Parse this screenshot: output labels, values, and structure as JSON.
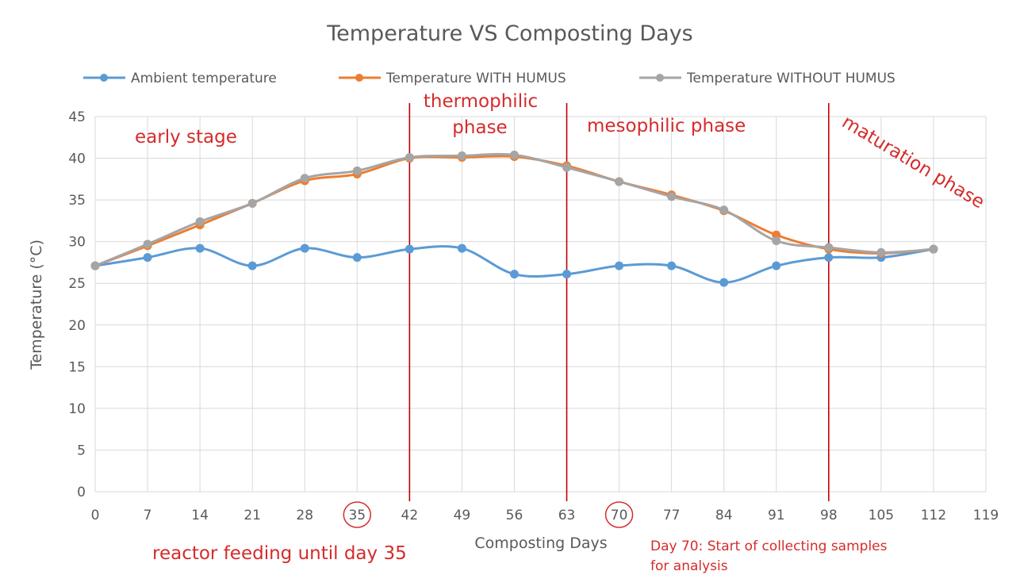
{
  "chart_data": {
    "type": "line",
    "title": "Temperature VS Composting Days",
    "xlabel": "Composting Days",
    "ylabel": "Temperature (°C)",
    "xlim": [
      0,
      119
    ],
    "ylim": [
      0,
      45
    ],
    "x_ticks": [
      0,
      7,
      14,
      21,
      28,
      35,
      42,
      49,
      56,
      63,
      70,
      77,
      84,
      91,
      98,
      105,
      112,
      119
    ],
    "y_ticks": [
      0,
      5,
      10,
      15,
      20,
      25,
      30,
      35,
      40,
      45
    ],
    "grid": true,
    "legend_position": "top",
    "x": [
      0,
      7,
      14,
      21,
      28,
      35,
      42,
      49,
      56,
      63,
      70,
      77,
      84,
      91,
      98,
      105,
      112
    ],
    "series": [
      {
        "name": "Ambient temperature",
        "color": "#5b9bd5",
        "values": [
          27.1,
          28.1,
          29.2,
          27.1,
          29.2,
          28.1,
          29.1,
          29.2,
          26.1,
          26.1,
          27.1,
          27.1,
          25.1,
          27.1,
          28.1,
          28.1,
          29.1
        ]
      },
      {
        "name": "Temperature WITH HUMUS",
        "color": "#ed7d31",
        "values": [
          27.1,
          29.5,
          32.0,
          34.6,
          37.3,
          38.1,
          40.0,
          40.1,
          40.2,
          39.1,
          37.2,
          35.6,
          33.7,
          30.8,
          29.1,
          28.6,
          29.1
        ]
      },
      {
        "name": "Temperature WITHOUT HUMUS",
        "color": "#a5a5a5",
        "values": [
          27.1,
          29.7,
          32.4,
          34.6,
          37.6,
          38.5,
          40.1,
          40.3,
          40.4,
          38.9,
          37.2,
          35.4,
          33.8,
          30.1,
          29.3,
          28.7,
          29.1
        ]
      }
    ],
    "phase_lines": [
      {
        "x": 42,
        "color": "#c00000"
      },
      {
        "x": 63,
        "color": "#c00000"
      },
      {
        "x": 98,
        "color": "#c00000"
      }
    ],
    "circled_ticks": [
      35,
      70
    ],
    "annotations": {
      "early_stage": "early stage",
      "thermophilic_1": "thermophilic",
      "thermophilic_2": "phase",
      "mesophilic": "mesophilic phase",
      "maturation": "maturation phase",
      "reactor_feeding": "reactor feeding until day 35",
      "day70_1": "Day 70: Start of collecting samples",
      "day70_2": "for analysis"
    },
    "annotation_color": "#d62b2b"
  }
}
